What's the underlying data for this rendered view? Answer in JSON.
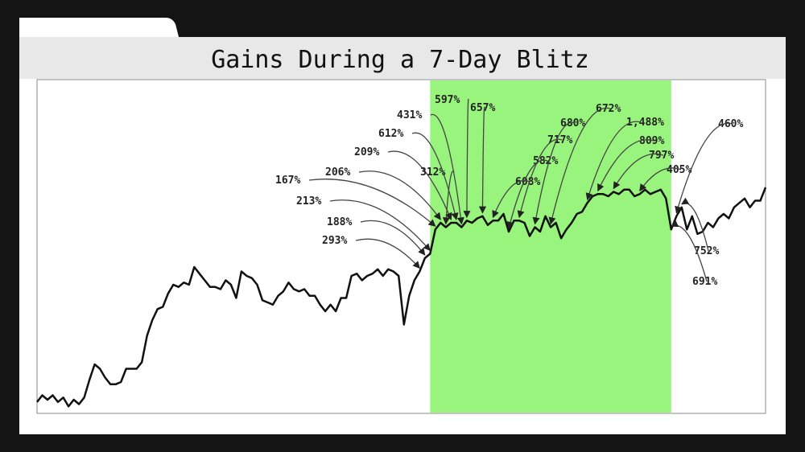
{
  "chart_data": {
    "type": "line",
    "title": "Gains During a 7-Day Blitz",
    "xlabel": "",
    "ylabel": "",
    "grid": false,
    "legend": "none",
    "ylim": [
      0,
      100
    ],
    "highlight": {
      "start_index": 75,
      "end_index": 121,
      "color": "#98f47c"
    },
    "values": [
      3,
      6,
      4,
      6,
      3,
      5,
      1,
      4,
      2,
      5,
      13,
      20,
      18,
      14,
      11,
      11,
      12,
      18,
      18,
      18,
      21,
      33,
      40,
      45,
      46,
      52,
      56,
      55,
      57,
      56,
      64,
      61,
      58,
      55,
      55,
      54,
      58,
      56,
      50,
      62,
      60,
      59,
      56,
      49,
      48,
      47,
      51,
      53,
      57,
      54,
      53,
      54,
      51,
      51,
      47,
      44,
      47,
      44,
      50,
      50,
      60,
      61,
      58,
      60,
      61,
      63,
      60,
      63,
      62,
      60,
      38,
      51,
      58,
      62,
      68,
      70,
      81,
      84,
      82,
      84,
      84,
      82,
      85,
      84,
      86,
      87,
      83,
      85,
      85,
      88,
      80,
      85,
      85,
      84,
      78,
      82,
      80,
      87,
      82,
      84,
      77,
      81,
      84,
      88,
      89,
      93,
      96,
      97,
      97,
      96,
      98,
      97,
      99,
      99,
      96,
      97,
      99,
      97,
      98,
      99,
      95,
      81,
      87,
      91,
      81,
      87,
      79,
      80,
      84,
      82,
      86,
      88,
      86,
      91,
      93,
      95,
      91,
      94,
      94,
      100
    ],
    "annotations": [
      {
        "text": "167%",
        "index": 76
      },
      {
        "text": "213%",
        "index": 75
      },
      {
        "text": "188%",
        "index": 74
      },
      {
        "text": "293%",
        "index": 73
      },
      {
        "text": "206%",
        "index": 77
      },
      {
        "text": "209%",
        "index": 79
      },
      {
        "text": "312%",
        "index": 78
      },
      {
        "text": "612%",
        "index": 80
      },
      {
        "text": "431%",
        "index": 81
      },
      {
        "text": "597%",
        "index": 82
      },
      {
        "text": "657%",
        "index": 85
      },
      {
        "text": "608%",
        "index": 87
      },
      {
        "text": "717%",
        "index": 92
      },
      {
        "text": "582%",
        "index": 90
      },
      {
        "text": "680%",
        "index": 95
      },
      {
        "text": "672%",
        "index": 98
      },
      {
        "text": "1,488%",
        "index": 105
      },
      {
        "text": "809%",
        "index": 107
      },
      {
        "text": "797%",
        "index": 110
      },
      {
        "text": "405%",
        "index": 115
      },
      {
        "text": "460%",
        "index": 122
      },
      {
        "text": "752%",
        "index": 123
      },
      {
        "text": "691%",
        "index": 121
      }
    ]
  }
}
